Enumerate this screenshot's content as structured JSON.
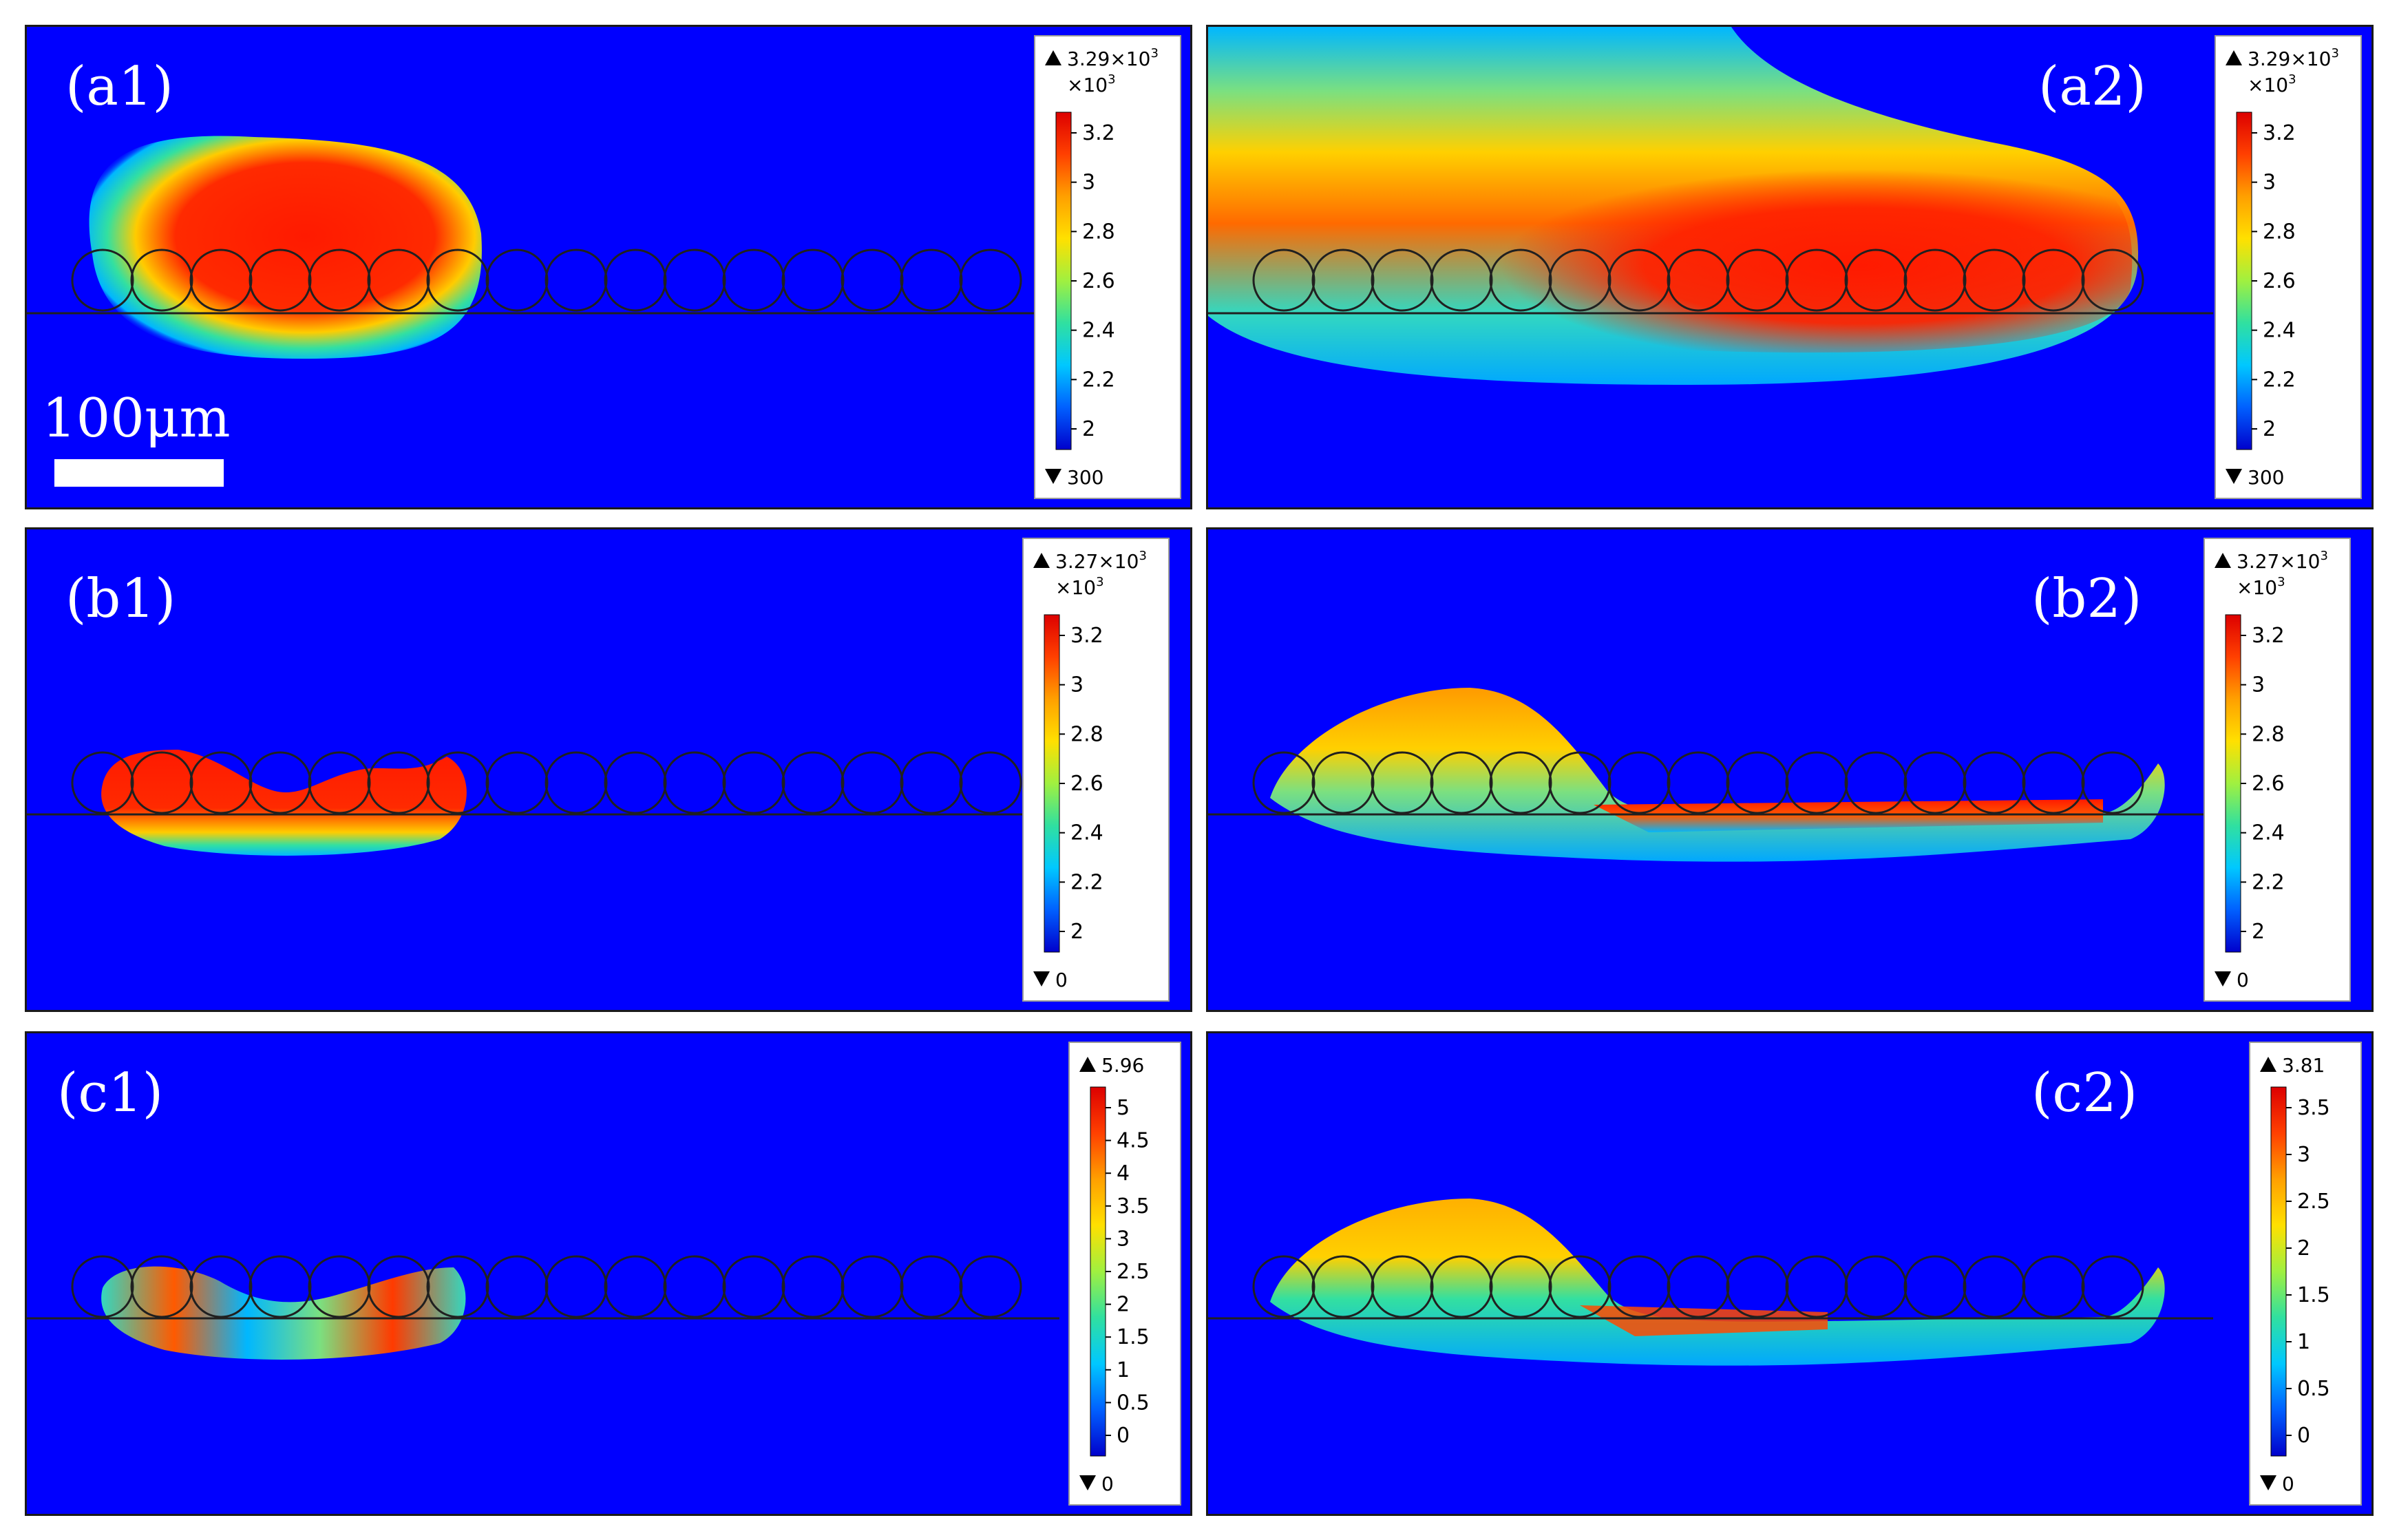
{
  "figure": {
    "panels": [
      {
        "id": "a1",
        "label": "(a1)",
        "scalebar": "100μm",
        "legend": {
          "max_label": "3.29×10",
          "max_exp": "3",
          "multiplier": "×10",
          "multiplier_exp": "3",
          "ticks": [
            "3.2",
            "3",
            "2.8",
            "2.6",
            "2.4",
            "2.2",
            "2"
          ],
          "min_label": "300"
        }
      },
      {
        "id": "a2",
        "label": "(a2)",
        "legend": {
          "max_label": "3.29×10",
          "max_exp": "3",
          "multiplier": "×10",
          "multiplier_exp": "3",
          "ticks": [
            "3.2",
            "3",
            "2.8",
            "2.6",
            "2.4",
            "2.2",
            "2"
          ],
          "min_label": "300"
        }
      },
      {
        "id": "b1",
        "label": "(b1)",
        "legend": {
          "max_label": "3.27×10",
          "max_exp": "3",
          "multiplier": "×10",
          "multiplier_exp": "3",
          "ticks": [
            "3.2",
            "3",
            "2.8",
            "2.6",
            "2.4",
            "2.2",
            "2"
          ],
          "min_label": "0"
        }
      },
      {
        "id": "b2",
        "label": "(b2)",
        "legend": {
          "max_label": "3.27×10",
          "max_exp": "3",
          "multiplier": "×10",
          "multiplier_exp": "3",
          "ticks": [
            "3.2",
            "3",
            "2.8",
            "2.6",
            "2.4",
            "2.2",
            "2"
          ],
          "min_label": "0"
        }
      },
      {
        "id": "c1",
        "label": "(c1)",
        "legend": {
          "max_label": "5.96",
          "ticks": [
            "5",
            "4.5",
            "4",
            "3.5",
            "3",
            "2.5",
            "2",
            "1.5",
            "1",
            "0.5",
            "0"
          ],
          "min_label": "0"
        }
      },
      {
        "id": "c2",
        "label": "(c2)",
        "legend": {
          "max_label": "3.81",
          "ticks": [
            "3.5",
            "3",
            "2.5",
            "2",
            "1.5",
            "1",
            "0.5",
            "0"
          ],
          "min_label": "0"
        }
      }
    ],
    "colors": {
      "background": "#0000ff",
      "hot": "#ff1a00",
      "warm": "#ffcc00",
      "mid": "#33e0a0",
      "cool": "#00b7ff",
      "particle_outline": "#202020"
    }
  }
}
